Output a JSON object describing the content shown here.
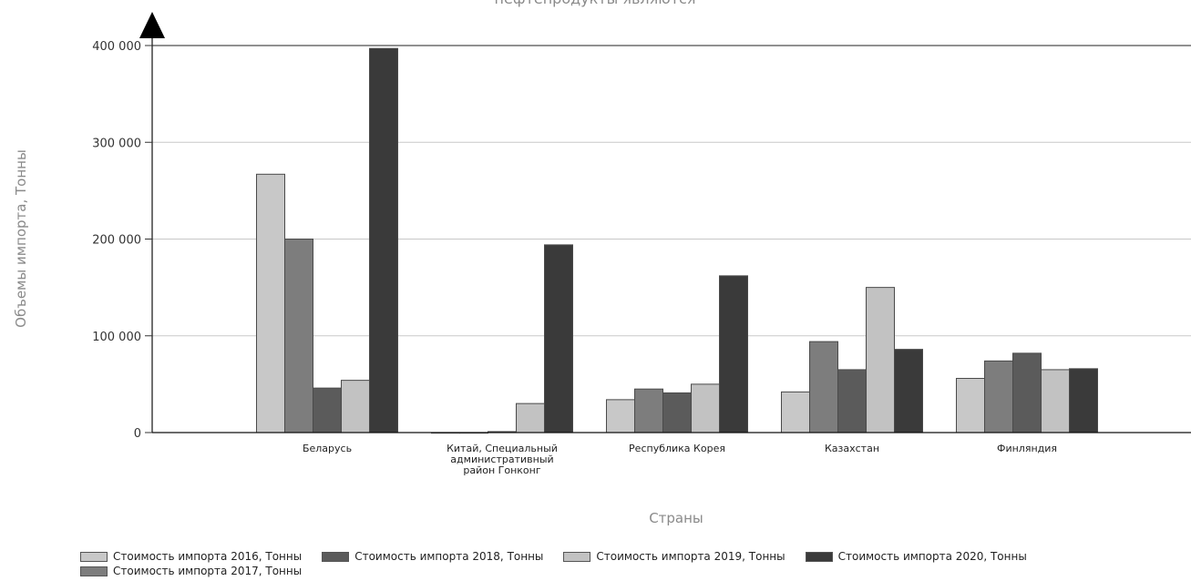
{
  "chart_data": {
    "type": "bar",
    "title": "нефтепродукты являются",
    "xlabel": "Страны",
    "ylabel": "Объемы импорта, Тонны",
    "ylim": [
      0,
      400000
    ],
    "yticks": [
      0,
      100000,
      200000,
      300000,
      400000
    ],
    "ytick_labels": [
      "0",
      "100 000",
      "200 000",
      "300 000",
      "400 000"
    ],
    "categories": [
      "Беларусь",
      "Китай, Специальный административный район Гонконг",
      "Республика Корея",
      "Казахстан",
      "Финляндия"
    ],
    "category_lines": [
      [
        "Беларусь"
      ],
      [
        "Китай, Специальный",
        "административный",
        "район Гонконг"
      ],
      [
        "Республика Корея"
      ],
      [
        "Казахстан"
      ],
      [
        "Финляндия"
      ]
    ],
    "series": [
      {
        "name": "Стоимость импорта 2016, Тонны",
        "color": "#c8c8c8",
        "values": [
          267000,
          0,
          34000,
          42000,
          56000
        ]
      },
      {
        "name": "Стоимость импорта 2017, Тонны",
        "color": "#7d7d7d",
        "values": [
          200000,
          0,
          45000,
          94000,
          74000
        ]
      },
      {
        "name": "Стоимость импорта 2018, Тонны",
        "color": "#5b5b5b",
        "values": [
          46000,
          1000,
          41000,
          65000,
          82000
        ]
      },
      {
        "name": "Стоимость импорта 2019, Тонны",
        "color": "#c2c2c2",
        "values": [
          54000,
          30000,
          50000,
          150000,
          65000
        ]
      },
      {
        "name": "Стоимость импорта 2020, Тонны",
        "color": "#3a3a3a",
        "values": [
          397000,
          194000,
          162000,
          86000,
          66000
        ]
      }
    ],
    "legend_position": "bottom",
    "grid": true
  }
}
